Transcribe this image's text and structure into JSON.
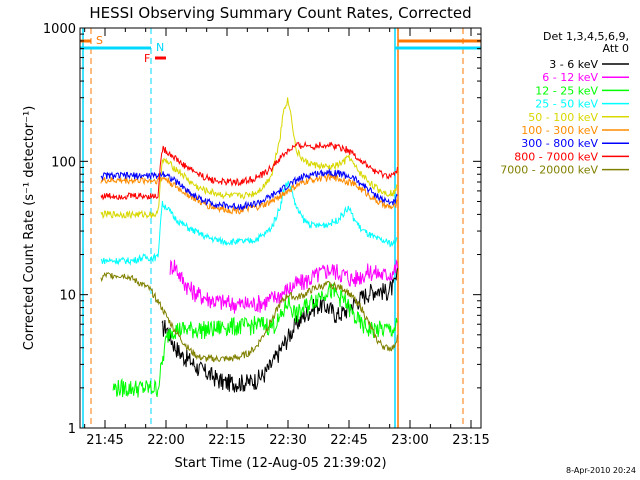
{
  "chart_data": {
    "type": "line",
    "title": "HESSI Observing Summary Count Rates, Corrected",
    "xlabel": "Start Time (12-Aug-05 21:39:02)",
    "ylabel": "Corrected Count Rate (s⁻¹ detector⁻¹)",
    "ylog": true,
    "ylim": [
      1,
      1000
    ],
    "xlim_minutes": [
      21.5,
      99.0
    ],
    "x_ticks": [
      {
        "m": 45,
        "label": "21:45"
      },
      {
        "m": 60,
        "label": "22:00"
      },
      {
        "m": 75,
        "label": "22:15"
      },
      {
        "m": 90,
        "label": "22:30"
      },
      {
        "m": 105,
        "label": "22:45"
      },
      {
        "m": 120,
        "label": "23:00"
      },
      {
        "m": 135,
        "label": "23:15"
      }
    ],
    "y_ticks": [
      {
        "v": 1,
        "label": "1"
      },
      {
        "v": 10,
        "label": "10"
      },
      {
        "v": 100,
        "label": "100"
      },
      {
        "v": 1000,
        "label": "1000"
      }
    ],
    "legend_title": [
      "Det 1,3,4,5,6,9,",
      "Att 0"
    ],
    "legend_position": "right",
    "timestamp": "8-Apr-2010 20:24",
    "flags": [
      {
        "label": "S",
        "color": "#ff7700"
      },
      {
        "label": "N",
        "color": "#00d8ff"
      },
      {
        "label": "F",
        "color": "#ff0000"
      }
    ],
    "series": [
      {
        "name": "3 - 6 keV",
        "color": "#000000",
        "x": [
          59,
          60,
          62,
          64,
          66,
          68,
          70,
          72,
          74,
          76,
          78,
          80,
          82,
          84,
          86,
          88,
          90,
          92,
          94,
          96,
          98,
          100,
          102,
          104,
          106,
          108,
          110,
          112,
          114,
          116,
          117
        ],
        "values": [
          5.5,
          5.8,
          4.2,
          3.5,
          3.2,
          2.8,
          2.6,
          2.4,
          2.2,
          2.2,
          2.2,
          2.2,
          2.3,
          2.5,
          3.0,
          3.8,
          4.8,
          6.0,
          7.0,
          8.0,
          8.5,
          8.0,
          7.0,
          7.5,
          8.5,
          9.5,
          10.5,
          11.0,
          10.5,
          11.5,
          14
        ]
      },
      {
        "name": "6 - 12 keV",
        "color": "#ff00ff",
        "x": [
          61,
          62,
          64,
          66,
          68,
          70,
          72,
          74,
          76,
          78,
          80,
          82,
          84,
          86,
          88,
          90,
          92,
          94,
          96,
          98,
          100,
          102,
          104,
          106,
          108,
          110,
          112,
          114,
          116,
          117
        ],
        "values": [
          16,
          17,
          13,
          11,
          10,
          9.5,
          9.0,
          8.8,
          8.6,
          8.5,
          8.5,
          8.6,
          8.8,
          9.3,
          10,
          11,
          12,
          12.5,
          13.5,
          14.5,
          15.5,
          15,
          14,
          13,
          14,
          15,
          14.5,
          14,
          15,
          17
        ]
      },
      {
        "name": "12 - 25 keV",
        "color": "#00ff00",
        "x": [
          47,
          48,
          50,
          52,
          54,
          56,
          58,
          60,
          61,
          62,
          64,
          66,
          68,
          70,
          72,
          74,
          76,
          78,
          80,
          82,
          84,
          86,
          88,
          90,
          92,
          94,
          96,
          98,
          100,
          102,
          104,
          106,
          108,
          110,
          112,
          114,
          116,
          117
        ],
        "values": [
          2,
          2,
          2,
          2,
          2,
          2,
          2,
          4.5,
          5.5,
          5.5,
          5.5,
          5.5,
          5.5,
          5.5,
          5.5,
          5.8,
          5.8,
          5.8,
          5.8,
          6.0,
          6.0,
          5.8,
          6.5,
          9,
          7,
          8,
          9,
          10,
          11,
          10,
          9,
          7,
          6,
          5.5,
          5.5,
          5.5,
          5.5,
          6
        ]
      },
      {
        "name": "25 - 50 keV",
        "color": "#00ffff",
        "x": [
          44,
          46,
          48,
          50,
          52,
          54,
          56,
          58,
          59,
          60,
          62,
          64,
          66,
          68,
          70,
          72,
          74,
          76,
          78,
          80,
          82,
          84,
          86,
          88,
          89,
          90,
          91,
          92,
          94,
          96,
          98,
          100,
          102,
          104,
          105,
          106,
          108,
          110,
          112,
          114,
          116,
          117
        ],
        "values": [
          18,
          18,
          18,
          18,
          18,
          19,
          19,
          19,
          48,
          46,
          38,
          34,
          31,
          29,
          27,
          26,
          25,
          25,
          25,
          25,
          26,
          28,
          32,
          45,
          62,
          70,
          60,
          45,
          36,
          33,
          33,
          34,
          36,
          42,
          45,
          38,
          31,
          28,
          26,
          25,
          24,
          26
        ]
      },
      {
        "name": "50 - 100 keV",
        "color": "#d8d800",
        "x": [
          44,
          46,
          48,
          50,
          52,
          54,
          56,
          58,
          59,
          60,
          62,
          64,
          66,
          68,
          70,
          72,
          74,
          76,
          78,
          80,
          82,
          84,
          86,
          88,
          89,
          90,
          91,
          92,
          94,
          96,
          98,
          100,
          102,
          104,
          105,
          106,
          108,
          110,
          112,
          114,
          116,
          117
        ],
        "values": [
          40,
          40,
          40,
          40,
          40,
          40,
          40,
          40,
          100,
          100,
          90,
          80,
          70,
          63,
          60,
          58,
          56,
          55,
          55,
          56,
          58,
          65,
          80,
          150,
          250,
          290,
          200,
          120,
          100,
          95,
          92,
          90,
          93,
          100,
          110,
          95,
          80,
          70,
          62,
          58,
          58,
          65
        ]
      },
      {
        "name": "100 - 300 keV",
        "color": "#ff8c00",
        "x": [
          44,
          46,
          48,
          50,
          52,
          54,
          56,
          58,
          59,
          60,
          62,
          64,
          66,
          68,
          70,
          72,
          74,
          76,
          78,
          80,
          82,
          84,
          86,
          88,
          90,
          92,
          94,
          96,
          98,
          100,
          102,
          104,
          106,
          108,
          110,
          112,
          114,
          116,
          117
        ],
        "values": [
          72,
          72,
          72,
          72,
          72,
          72,
          72,
          72,
          75,
          74,
          66,
          60,
          55,
          50,
          47,
          45,
          44,
          43,
          43,
          44,
          45,
          47,
          50,
          55,
          60,
          65,
          70,
          73,
          75,
          76,
          75,
          72,
          68,
          62,
          56,
          50,
          46,
          45,
          50
        ]
      },
      {
        "name": "300 - 800 keV",
        "color": "#0000ff",
        "x": [
          44,
          46,
          48,
          50,
          52,
          54,
          56,
          58,
          59,
          60,
          62,
          64,
          66,
          68,
          70,
          72,
          74,
          76,
          78,
          80,
          82,
          84,
          86,
          88,
          90,
          92,
          94,
          96,
          98,
          100,
          102,
          104,
          106,
          108,
          110,
          112,
          114,
          116,
          117
        ],
        "values": [
          78,
          78,
          78,
          78,
          78,
          78,
          78,
          78,
          82,
          80,
          72,
          65,
          58,
          53,
          50,
          48,
          47,
          46,
          46,
          47,
          48,
          51,
          55,
          60,
          66,
          72,
          77,
          80,
          82,
          83,
          82,
          79,
          75,
          68,
          61,
          55,
          50,
          49,
          55
        ]
      },
      {
        "name": "800 - 7000 keV",
        "color": "#ff0000",
        "x": [
          44,
          46,
          48,
          50,
          52,
          54,
          56,
          58,
          59,
          60,
          62,
          64,
          66,
          68,
          70,
          72,
          74,
          76,
          78,
          80,
          82,
          84,
          86,
          88,
          90,
          92,
          94,
          96,
          98,
          100,
          102,
          104,
          106,
          108,
          110,
          112,
          114,
          116,
          117
        ],
        "values": [
          55,
          55,
          55,
          55,
          55,
          55,
          55,
          55,
          125,
          120,
          108,
          95,
          88,
          80,
          75,
          72,
          70,
          70,
          70,
          72,
          75,
          80,
          90,
          105,
          120,
          130,
          132,
          130,
          132,
          133,
          130,
          125,
          115,
          100,
          90,
          82,
          78,
          78,
          90
        ]
      },
      {
        "name": "7000 - 20000 keV",
        "color": "#808000",
        "x": [
          44,
          45,
          46,
          48,
          50,
          52,
          54,
          56,
          58,
          60,
          62,
          64,
          66,
          68,
          70,
          72,
          74,
          76,
          78,
          80,
          82,
          84,
          86,
          88,
          90,
          92,
          94,
          96,
          98,
          100,
          102,
          104,
          106,
          108,
          110,
          112,
          114,
          116,
          117
        ],
        "values": [
          13,
          14,
          14,
          14,
          14,
          13,
          12,
          11,
          9,
          7,
          5.5,
          4.5,
          3.8,
          3.4,
          3.3,
          3.3,
          3.3,
          3.3,
          3.4,
          3.6,
          4.0,
          5.0,
          6.5,
          8.5,
          10,
          9.5,
          10,
          11,
          11.5,
          12,
          11.5,
          11,
          9.5,
          8,
          6,
          4.5,
          4,
          4,
          5
        ]
      }
    ]
  }
}
